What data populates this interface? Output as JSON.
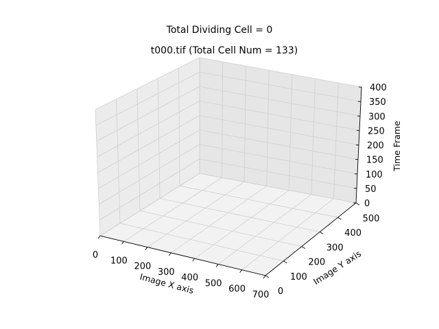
{
  "figure": {
    "suptitle": "Total Dividing Cell = 0",
    "title": "t000.tif (Total Cell Num = 133)"
  },
  "chart_data": {
    "type": "scatter",
    "projection": "3d",
    "title": "t000.tif (Total Cell Num = 133)",
    "suptitle": "Total Dividing Cell = 0",
    "xlabel": "Image X axis",
    "ylabel": "Image Y axis",
    "zlabel": "Time Frame",
    "xlim": [
      0,
      700
    ],
    "ylim": [
      0,
      500
    ],
    "zlim": [
      0,
      400
    ],
    "xticks": [
      "0",
      "100",
      "200",
      "300",
      "400",
      "500",
      "600",
      "700"
    ],
    "yticks": [
      "0",
      "100",
      "200",
      "300",
      "400",
      "500"
    ],
    "zticks": [
      "0",
      "50",
      "100",
      "150",
      "200",
      "250",
      "300",
      "350",
      "400"
    ],
    "grid": true,
    "series": []
  }
}
